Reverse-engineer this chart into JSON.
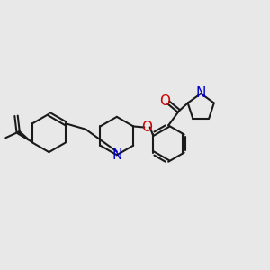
{
  "bg_color": "#e8e8e8",
  "bond_color": "#1a1a1a",
  "N_color": "#0000cc",
  "O_color": "#cc0000",
  "bond_width": 1.5,
  "font_size": 10,
  "xlim": [
    0,
    14
  ],
  "ylim": [
    0,
    10
  ]
}
